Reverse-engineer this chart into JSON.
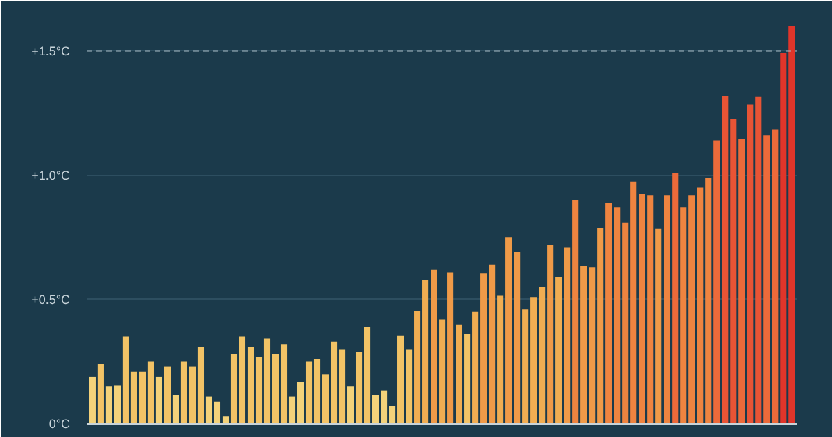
{
  "chart_data": {
    "type": "bar",
    "categories": [
      null,
      null,
      null,
      null,
      null,
      null,
      null,
      null,
      null,
      null,
      null,
      null,
      null,
      null,
      null,
      null,
      null,
      null,
      null,
      null,
      null,
      null,
      null,
      null,
      null,
      null,
      null,
      null,
      null,
      null,
      null,
      null,
      null,
      null,
      null,
      null,
      null,
      null,
      null,
      null,
      null,
      null,
      null,
      null,
      null,
      null,
      null,
      null,
      null,
      null,
      null,
      null,
      null,
      null,
      null,
      null,
      null,
      null,
      null,
      null,
      null,
      null,
      null,
      null,
      null,
      null,
      null,
      null,
      null,
      null,
      null,
      null,
      null,
      null,
      null,
      null,
      null,
      null,
      null,
      null,
      null,
      null,
      null,
      null,
      null
    ],
    "values": [
      0.19,
      0.24,
      0.15,
      0.155,
      0.35,
      0.21,
      0.21,
      0.25,
      0.19,
      0.23,
      0.115,
      0.25,
      0.23,
      0.31,
      0.11,
      0.09,
      0.03,
      0.28,
      0.35,
      0.31,
      0.27,
      0.345,
      0.28,
      0.32,
      0.11,
      0.17,
      0.25,
      0.26,
      0.2,
      0.33,
      0.3,
      0.15,
      0.29,
      0.39,
      0.115,
      0.135,
      0.07,
      0.355,
      0.3,
      0.455,
      0.58,
      0.62,
      0.42,
      0.61,
      0.4,
      0.36,
      0.45,
      0.605,
      0.64,
      0.515,
      0.75,
      0.69,
      0.46,
      0.51,
      0.55,
      0.72,
      0.59,
      0.71,
      0.9,
      0.635,
      0.63,
      0.79,
      0.89,
      0.87,
      0.81,
      0.975,
      0.925,
      0.92,
      0.785,
      0.92,
      1.01,
      0.87,
      0.92,
      0.95,
      0.99,
      1.14,
      1.32,
      1.225,
      1.145,
      1.285,
      1.315,
      1.16,
      1.185,
      1.49,
      1.6
    ],
    "colors": [
      "#f3d27a",
      "#f2c366",
      "#f3d27a",
      "#f3d27a",
      "#f2c366",
      "#f2c366",
      "#f2c366",
      "#f2c366",
      "#f3d27a",
      "#f2c366",
      "#f3d27a",
      "#f2c366",
      "#f2c366",
      "#f2c366",
      "#f3d27a",
      "#f3d27a",
      "#f3d27a",
      "#f2c366",
      "#f2c366",
      "#f2c366",
      "#f2c366",
      "#f2c366",
      "#f2c366",
      "#f2c366",
      "#f3d27a",
      "#f3d27a",
      "#f2c366",
      "#f2c366",
      "#f2c366",
      "#f2c366",
      "#f2c366",
      "#f3d27a",
      "#f2c366",
      "#f2c366",
      "#f3d27a",
      "#f3d27a",
      "#f3d27a",
      "#f2c366",
      "#f2c366",
      "#f0ad52",
      "#f0ad52",
      "#ef9a48",
      "#f0ad52",
      "#ef9a48",
      "#f0ad52",
      "#f2c366",
      "#f0ad52",
      "#ef9a48",
      "#ef9a48",
      "#f0ad52",
      "#ef9a48",
      "#ef9a48",
      "#f0ad52",
      "#f0ad52",
      "#f0ad52",
      "#ef9a48",
      "#f0ad52",
      "#ef9a48",
      "#ee8440",
      "#ef9a48",
      "#ef9a48",
      "#ef9a48",
      "#ee8440",
      "#ee8440",
      "#ee8440",
      "#ee8440",
      "#ee8440",
      "#ee8440",
      "#ef9a48",
      "#ee8440",
      "#ec6a3a",
      "#ee8440",
      "#ee8440",
      "#ee8440",
      "#ee8440",
      "#ec6a3a",
      "#e85435",
      "#e85435",
      "#ec6a3a",
      "#e85435",
      "#e85435",
      "#ec6a3a",
      "#ec6a3a",
      "#e0352a",
      "#e0352a"
    ],
    "ylim": [
      0,
      1.68
    ],
    "yticks": [
      {
        "value": 0,
        "label": "0°C"
      },
      {
        "value": 0.5,
        "label": "+0.5°C"
      },
      {
        "value": 1.0,
        "label": "+1.0°C"
      },
      {
        "value": 1.5,
        "label": "+1.5°C"
      }
    ],
    "grid": "y",
    "tick_labels": "y",
    "ref_lines": [
      {
        "axis": "y",
        "value": 1.5,
        "label": null,
        "color": "#a9bcc6",
        "line_style": "dashed"
      }
    ]
  }
}
